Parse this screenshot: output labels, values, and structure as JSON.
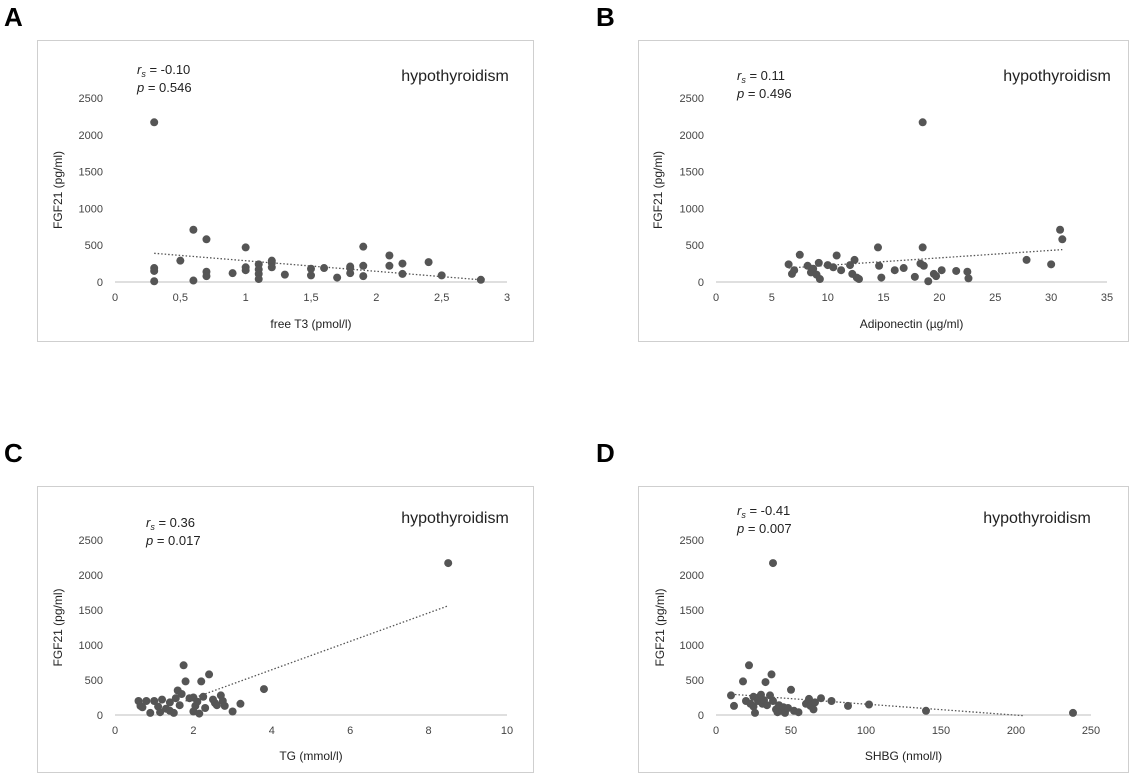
{
  "chart_data": [
    {
      "type": "scatter",
      "panel": "A",
      "title": "hypothyroidism",
      "xlabel": "free T3  (pmol/l)",
      "ylabel": "FGF21 (pg/ml)",
      "xlim": [
        0,
        3
      ],
      "ylim": [
        0,
        2500
      ],
      "xticks": [
        "0",
        "0,5",
        "1",
        "1,5",
        "2",
        "2,5",
        "3"
      ],
      "xtick_values": [
        0,
        0.5,
        1,
        1.5,
        2,
        2.5,
        3
      ],
      "yticks": [
        "0",
        "500",
        "1000",
        "1500",
        "2000",
        "2500"
      ],
      "ytick_values": [
        0,
        500,
        1000,
        1500,
        2000,
        2500
      ],
      "stat_r_label": "r",
      "stat_r_sub": "s",
      "stat_r_value": " = -0.10",
      "stat_p_label": "p",
      "stat_p_value": " = 0.546",
      "trend": [
        [
          0.3,
          390
        ],
        [
          2.8,
          30
        ]
      ],
      "points": [
        [
          0.3,
          2170
        ],
        [
          0.3,
          190
        ],
        [
          0.3,
          150
        ],
        [
          0.3,
          10
        ],
        [
          0.5,
          290
        ],
        [
          0.6,
          710
        ],
        [
          0.6,
          20
        ],
        [
          0.7,
          580
        ],
        [
          0.7,
          140
        ],
        [
          0.7,
          80
        ],
        [
          0.9,
          120
        ],
        [
          1.0,
          470
        ],
        [
          1.0,
          200
        ],
        [
          1.0,
          160
        ],
        [
          1.1,
          240
        ],
        [
          1.1,
          170
        ],
        [
          1.1,
          110
        ],
        [
          1.1,
          40
        ],
        [
          1.2,
          290
        ],
        [
          1.2,
          260
        ],
        [
          1.2,
          200
        ],
        [
          1.3,
          100
        ],
        [
          1.5,
          180
        ],
        [
          1.5,
          90
        ],
        [
          1.6,
          190
        ],
        [
          1.7,
          60
        ],
        [
          1.8,
          210
        ],
        [
          1.8,
          120
        ],
        [
          1.8,
          190
        ],
        [
          1.9,
          480
        ],
        [
          1.9,
          220
        ],
        [
          1.9,
          80
        ],
        [
          2.1,
          360
        ],
        [
          2.1,
          220
        ],
        [
          2.2,
          250
        ],
        [
          2.2,
          110
        ],
        [
          2.4,
          270
        ],
        [
          2.5,
          90
        ],
        [
          2.8,
          30
        ]
      ]
    },
    {
      "type": "scatter",
      "panel": "B",
      "title": "hypothyroidism",
      "xlabel": "Adiponectin (µg/ml)",
      "ylabel": "FGF21 (pg/ml)",
      "xlim": [
        0,
        35
      ],
      "ylim": [
        0,
        2500
      ],
      "xticks": [
        "0",
        "5",
        "10",
        "15",
        "20",
        "25",
        "30",
        "35"
      ],
      "xtick_values": [
        0,
        5,
        10,
        15,
        20,
        25,
        30,
        35
      ],
      "yticks": [
        "0",
        "500",
        "1000",
        "1500",
        "2000",
        "2500"
      ],
      "ytick_values": [
        0,
        500,
        1000,
        1500,
        2000,
        2500
      ],
      "stat_r_label": "r",
      "stat_r_sub": "s",
      "stat_r_value": " = 0.11",
      "stat_p_label": "p",
      "stat_p_value": " = 0.496",
      "trend": [
        [
          6.5,
          190
        ],
        [
          31,
          440
        ]
      ],
      "points": [
        [
          18.5,
          2170
        ],
        [
          6.5,
          240
        ],
        [
          6.8,
          110
        ],
        [
          7.0,
          160
        ],
        [
          7.5,
          370
        ],
        [
          8.2,
          220
        ],
        [
          8.5,
          130
        ],
        [
          8.7,
          180
        ],
        [
          9.0,
          100
        ],
        [
          9.2,
          260
        ],
        [
          9.3,
          40
        ],
        [
          10.0,
          230
        ],
        [
          10.5,
          200
        ],
        [
          10.8,
          360
        ],
        [
          11.2,
          160
        ],
        [
          12.0,
          230
        ],
        [
          12.2,
          110
        ],
        [
          12.4,
          300
        ],
        [
          12.6,
          60
        ],
        [
          12.8,
          40
        ],
        [
          14.5,
          470
        ],
        [
          14.6,
          220
        ],
        [
          14.8,
          60
        ],
        [
          16.0,
          160
        ],
        [
          16.8,
          190
        ],
        [
          17.8,
          70
        ],
        [
          18.3,
          250
        ],
        [
          18.5,
          470
        ],
        [
          18.6,
          220
        ],
        [
          19.0,
          10
        ],
        [
          19.5,
          110
        ],
        [
          19.7,
          80
        ],
        [
          20.2,
          160
        ],
        [
          21.5,
          150
        ],
        [
          22.5,
          140
        ],
        [
          22.6,
          50
        ],
        [
          27.8,
          300
        ],
        [
          30.0,
          240
        ],
        [
          30.8,
          710
        ],
        [
          31.0,
          580
        ]
      ]
    },
    {
      "type": "scatter",
      "panel": "C",
      "title": "hypothyroidism",
      "xlabel": "TG (mmol/l)",
      "ylabel": "FGF21 (pg/ml)",
      "xlim": [
        0,
        10
      ],
      "ylim": [
        0,
        2500
      ],
      "xticks": [
        "0",
        "2",
        "4",
        "6",
        "8",
        "10"
      ],
      "xtick_values": [
        0,
        2,
        4,
        6,
        8,
        10
      ],
      "yticks": [
        "0",
        "500",
        "1000",
        "1500",
        "2000",
        "2500"
      ],
      "ytick_values": [
        0,
        500,
        1000,
        1500,
        2000,
        2500
      ],
      "stat_r_label": "r",
      "stat_r_sub": "s",
      "stat_r_value": " = 0.36",
      "stat_p_label": "p",
      "stat_p_value": " = 0.017",
      "trend": [
        [
          1.8,
          200
        ],
        [
          8.5,
          1560
        ]
      ],
      "points": [
        [
          8.5,
          2170
        ],
        [
          0.6,
          200
        ],
        [
          0.65,
          130
        ],
        [
          0.7,
          110
        ],
        [
          0.8,
          200
        ],
        [
          0.9,
          30
        ],
        [
          1.0,
          200
        ],
        [
          1.1,
          120
        ],
        [
          1.15,
          40
        ],
        [
          1.2,
          220
        ],
        [
          1.3,
          90
        ],
        [
          1.4,
          60
        ],
        [
          1.4,
          180
        ],
        [
          1.5,
          30
        ],
        [
          1.55,
          240
        ],
        [
          1.6,
          350
        ],
        [
          1.65,
          140
        ],
        [
          1.7,
          300
        ],
        [
          1.75,
          710
        ],
        [
          1.8,
          480
        ],
        [
          1.9,
          240
        ],
        [
          2.0,
          250
        ],
        [
          2.0,
          50
        ],
        [
          2.05,
          130
        ],
        [
          2.1,
          190
        ],
        [
          2.15,
          20
        ],
        [
          2.2,
          480
        ],
        [
          2.25,
          260
        ],
        [
          2.3,
          100
        ],
        [
          2.4,
          580
        ],
        [
          2.5,
          220
        ],
        [
          2.55,
          170
        ],
        [
          2.6,
          140
        ],
        [
          2.7,
          280
        ],
        [
          2.75,
          200
        ],
        [
          2.8,
          130
        ],
        [
          3.0,
          50
        ],
        [
          3.2,
          160
        ],
        [
          3.8,
          370
        ]
      ]
    },
    {
      "type": "scatter",
      "panel": "D",
      "title": "hypothyroidism",
      "xlabel": "SHBG (nmol/l)",
      "ylabel": "FGF21 (pg/ml)",
      "xlim": [
        0,
        250
      ],
      "ylim": [
        0,
        2500
      ],
      "xticks": [
        "0",
        "50",
        "100",
        "150",
        "200",
        "250"
      ],
      "xtick_values": [
        0,
        50,
        100,
        150,
        200,
        250
      ],
      "yticks": [
        "0",
        "500",
        "1000",
        "1500",
        "2000",
        "2500"
      ],
      "ytick_values": [
        0,
        500,
        1000,
        1500,
        2000,
        2500
      ],
      "stat_r_label": "r",
      "stat_r_sub": "s",
      "stat_r_value": " = -0.41",
      "stat_p_label": "p",
      "stat_p_value": " = 0.007",
      "trend": [
        [
          8,
          300
        ],
        [
          205,
          -10
        ]
      ],
      "points": [
        [
          38,
          2170
        ],
        [
          10,
          280
        ],
        [
          12,
          130
        ],
        [
          18,
          480
        ],
        [
          20,
          200
        ],
        [
          22,
          710
        ],
        [
          23,
          160
        ],
        [
          25,
          260
        ],
        [
          25,
          120
        ],
        [
          26,
          30
        ],
        [
          28,
          200
        ],
        [
          29,
          260
        ],
        [
          30,
          290
        ],
        [
          31,
          160
        ],
        [
          32,
          210
        ],
        [
          33,
          470
        ],
        [
          34,
          140
        ],
        [
          36,
          280
        ],
        [
          37,
          580
        ],
        [
          38,
          200
        ],
        [
          40,
          80
        ],
        [
          41,
          40
        ],
        [
          42,
          140
        ],
        [
          44,
          60
        ],
        [
          45,
          110
        ],
        [
          46,
          30
        ],
        [
          48,
          100
        ],
        [
          50,
          360
        ],
        [
          52,
          60
        ],
        [
          55,
          40
        ],
        [
          60,
          160
        ],
        [
          62,
          230
        ],
        [
          63,
          130
        ],
        [
          65,
          80
        ],
        [
          66,
          180
        ],
        [
          70,
          240
        ],
        [
          77,
          200
        ],
        [
          88,
          130
        ],
        [
          102,
          150
        ],
        [
          140,
          60
        ],
        [
          238,
          30
        ]
      ]
    }
  ],
  "panels": {
    "A": {
      "letter": "A"
    },
    "B": {
      "letter": "B"
    },
    "C": {
      "letter": "C"
    },
    "D": {
      "letter": "D"
    }
  }
}
